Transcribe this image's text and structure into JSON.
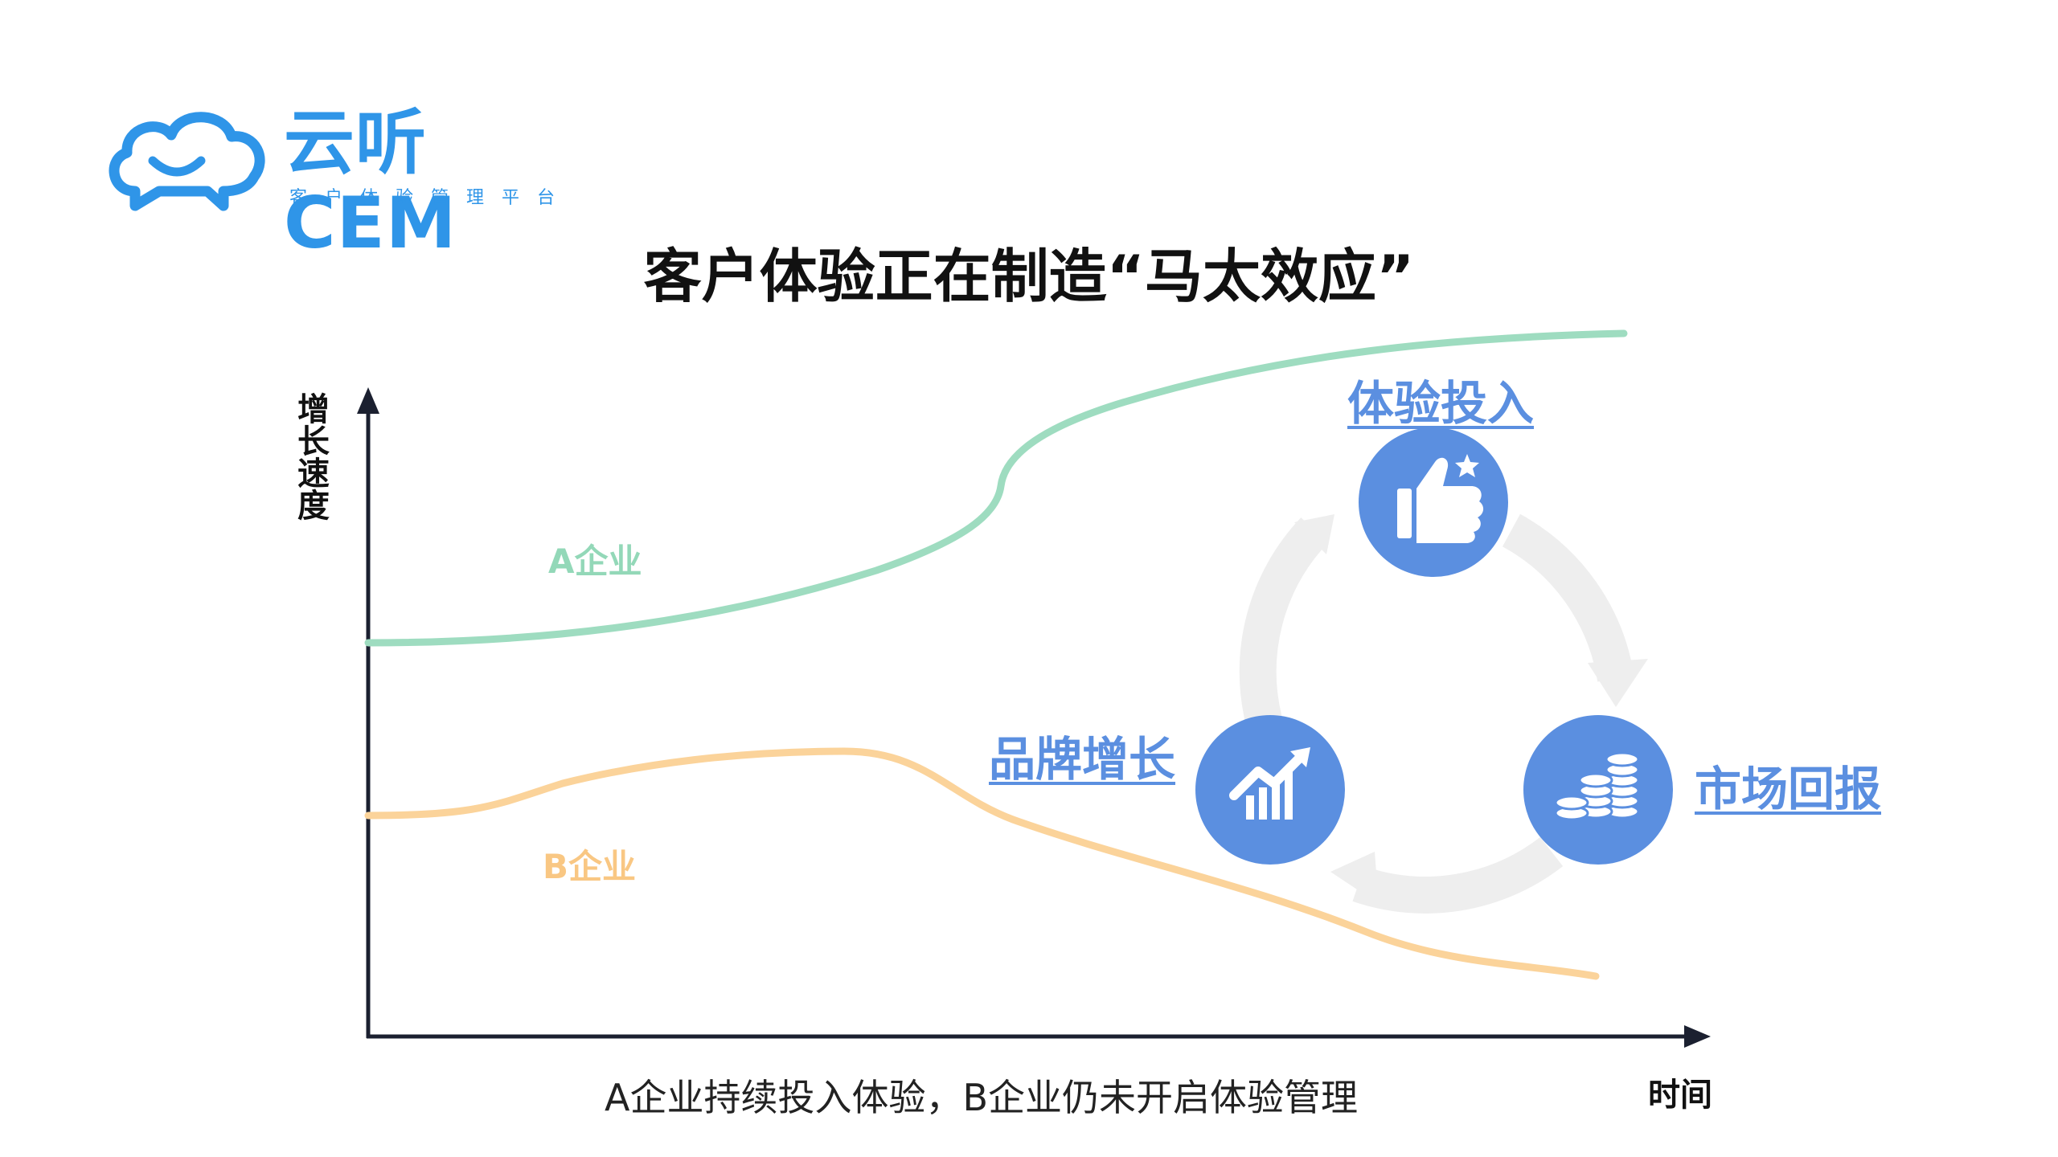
{
  "logo": {
    "brand": "云听CEM",
    "tagline": "客户体验管理平台"
  },
  "title": "客户体验正在制造“马太效应”",
  "axes": {
    "y_label": "增长速度",
    "x_label": "时间"
  },
  "series": {
    "a_label": "A企业",
    "b_label": "B企业"
  },
  "cycle": {
    "top": "体验投入",
    "right": "市场回报",
    "left": "品牌增长"
  },
  "caption": "A企业持续投入体验，B企业仍未开启体验管理",
  "colors": {
    "series_a": "#93d8b8",
    "series_b": "#f9c783",
    "node": "#5b8fe0",
    "logo": "#2f95e8"
  }
}
